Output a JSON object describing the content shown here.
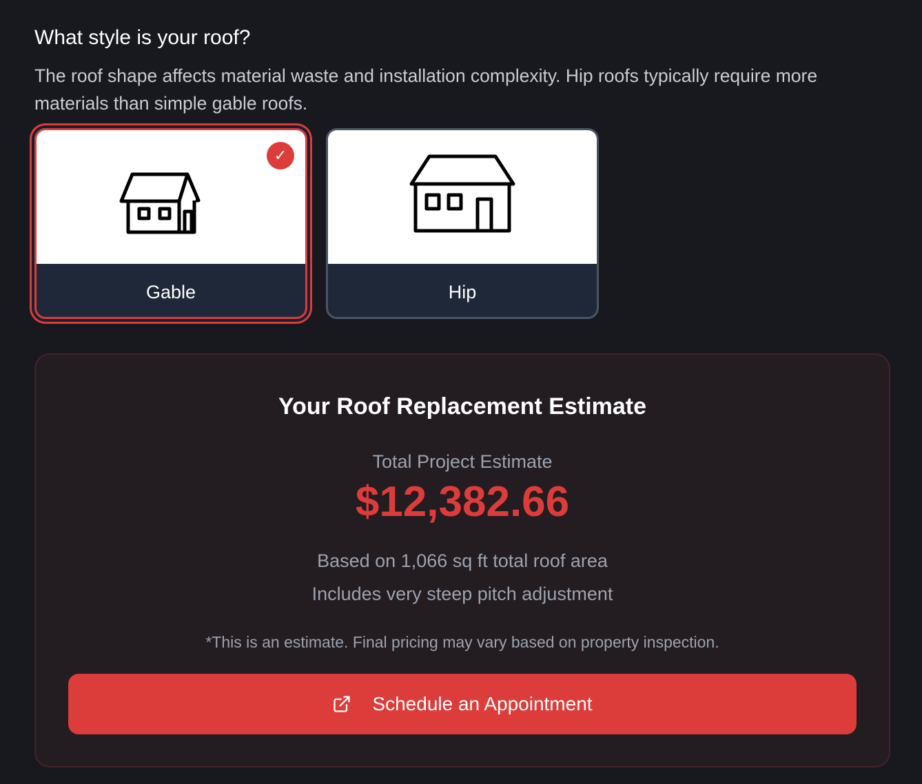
{
  "question": {
    "title": "What style is your roof?",
    "description": "The roof shape affects material waste and installation complexity. Hip roofs typically require more materials than simple gable roofs."
  },
  "options": [
    {
      "label": "Gable",
      "icon": "gable-house-icon",
      "selected": true
    },
    {
      "label": "Hip",
      "icon": "hip-house-icon",
      "selected": false
    }
  ],
  "estimate": {
    "title": "Your Roof Replacement Estimate",
    "total_label": "Total Project Estimate",
    "total": "$12,382.66",
    "area_note": "Based on 1,066 sq ft total roof area",
    "pitch_note": "Includes very steep pitch adjustment",
    "disclaimer": "*This is an estimate. Final pricing may vary based on property inspection.",
    "cta_label": "Schedule an Appointment",
    "cta_icon": "external-link-icon"
  },
  "colors": {
    "accent": "#dc3c3a",
    "background": "#18191e",
    "card_label_bg": "#1f2839"
  }
}
